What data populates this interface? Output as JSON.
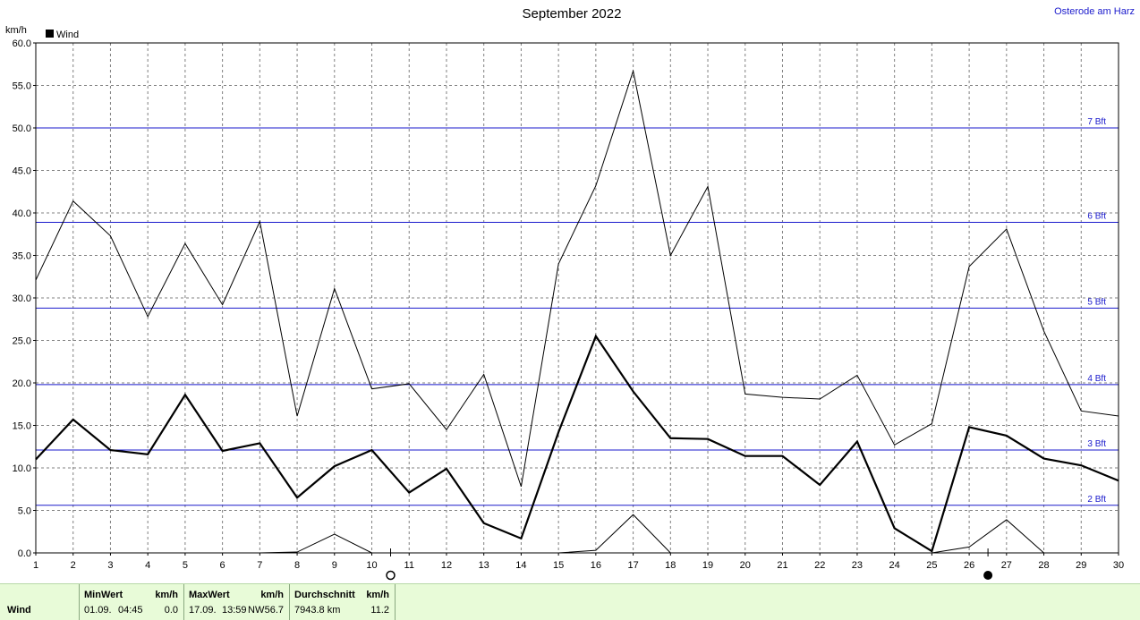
{
  "chart_data": {
    "type": "line",
    "title": "September 2022",
    "location": "Osterode am Harz",
    "ylabel": "km/h",
    "legend": {
      "label": "Wind",
      "placement": "top-left"
    },
    "xlim": [
      1,
      30
    ],
    "ylim": [
      0,
      60
    ],
    "x": [
      1,
      2,
      3,
      4,
      5,
      6,
      7,
      8,
      9,
      10,
      11,
      12,
      13,
      14,
      15,
      16,
      17,
      18,
      19,
      20,
      21,
      22,
      23,
      24,
      25,
      26,
      27,
      28,
      29,
      30
    ],
    "x_tick_labels": [
      "1",
      "2",
      "3",
      "4",
      "5",
      "6",
      "7",
      "8",
      "9",
      "10",
      "11",
      "12",
      "13",
      "14",
      "15",
      "16",
      "17",
      "18",
      "19",
      "20",
      "21",
      "22",
      "23",
      "24",
      "25",
      "26",
      "27",
      "28",
      "29",
      "30"
    ],
    "y_tick_labels": [
      "0.0",
      "5.0",
      "10.0",
      "15.0",
      "20.0",
      "25.0",
      "30.0",
      "35.0",
      "40.0",
      "45.0",
      "50.0",
      "55.0",
      "60.0"
    ],
    "series": [
      {
        "role": "daily maximum",
        "values": [
          32.1,
          41.4,
          37.3,
          27.8,
          36.4,
          29.2,
          39.0,
          16.1,
          31.1,
          19.3,
          19.9,
          14.5,
          21.0,
          7.8,
          34.0,
          43.2,
          56.7,
          35.0,
          43.1,
          18.7,
          18.3,
          18.1,
          20.9,
          12.7,
          15.2,
          33.7,
          38.1,
          26.1,
          16.7,
          16.1
        ]
      },
      {
        "role": "daily average",
        "values": [
          11.0,
          15.7,
          12.1,
          11.6,
          18.6,
          12.0,
          12.9,
          6.5,
          10.2,
          12.1,
          7.1,
          9.9,
          3.5,
          1.7,
          14.2,
          25.5,
          19.0,
          13.5,
          13.4,
          11.4,
          11.4,
          8.0,
          13.1,
          2.9,
          0.2,
          14.8,
          13.8,
          11.1,
          10.3,
          8.5
        ]
      },
      {
        "role": "daily minimum",
        "values": [
          0,
          0,
          0,
          0,
          0,
          0,
          0,
          0.1,
          2.2,
          0,
          0,
          0,
          0,
          0,
          0,
          0.3,
          4.5,
          0,
          0,
          0,
          0,
          0,
          0,
          0,
          0,
          0.7,
          3.9,
          0,
          0,
          0
        ]
      }
    ],
    "reference_lines": [
      {
        "label": "2 Bft",
        "value": 5.6
      },
      {
        "label": "3 Bft",
        "value": 12.1
      },
      {
        "label": "4 Bft",
        "value": 19.8
      },
      {
        "label": "5 Bft",
        "value": 28.8
      },
      {
        "label": "6 Bft",
        "value": 38.9
      },
      {
        "label": "7 Bft",
        "value": 50.0
      }
    ],
    "moon_markers": [
      {
        "x": 10,
        "phase": "full-moon"
      },
      {
        "x": 26,
        "phase": "new-moon"
      }
    ],
    "grid": true,
    "colors": {
      "line": "#000000",
      "beaufort": "#1a1acc",
      "grid": "#808080",
      "footer": "#e8fbd8"
    }
  },
  "stats": {
    "row_label": "Wind",
    "min": {
      "header": "MinWert",
      "unit": "km/h",
      "date": "01.09.",
      "time": "04:45",
      "value": "0.0"
    },
    "max": {
      "header": "MaxWert",
      "unit": "km/h",
      "date": "17.09.",
      "time": "13:59",
      "direction": "NW",
      "value": "56.7"
    },
    "avg": {
      "header": "Durchschnitt",
      "unit": "km/h",
      "distance": "7943.8 km",
      "value": "11.2"
    }
  }
}
